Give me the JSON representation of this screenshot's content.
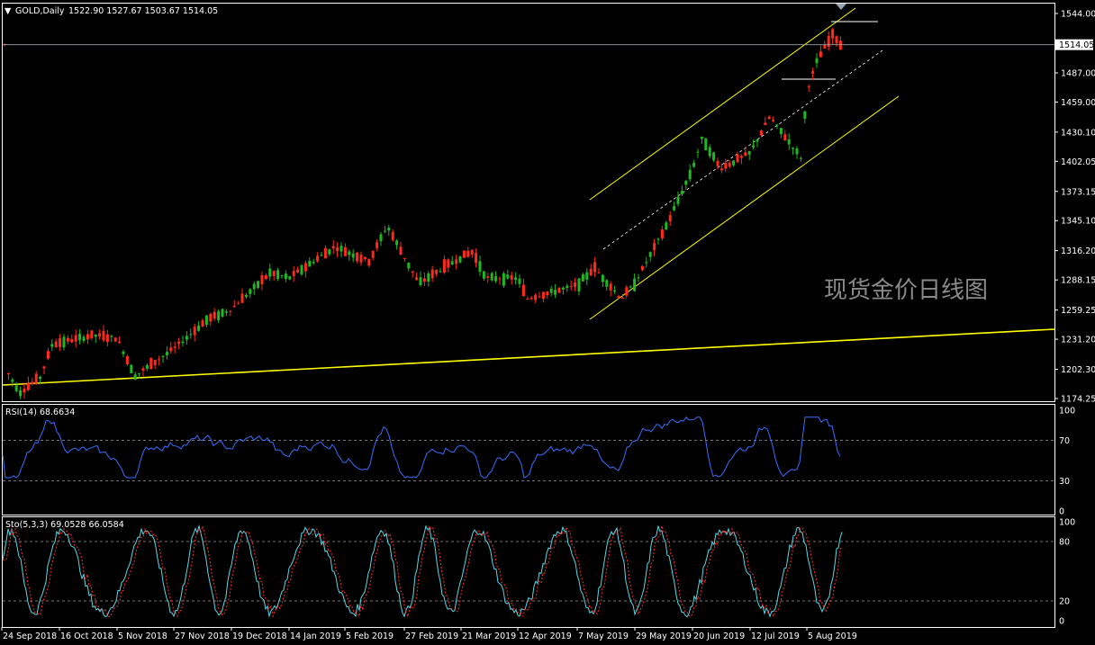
{
  "header": {
    "symbol": "GOLD,Daily",
    "ohlc": "1522.90 1527.67 1503.67 1514.05"
  },
  "watermark": "现货金价日线图",
  "rsi": {
    "label": "RSI(14) 68.6634",
    "ticks": [
      "100",
      "70",
      "30",
      "0"
    ]
  },
  "sto": {
    "label": "Sto(5,3,3) 69.0528 66.0584",
    "ticks": [
      "100",
      "80",
      "20",
      "0"
    ]
  },
  "price_axis": {
    "ticks": [
      "1544.00",
      "1487.00",
      "1459.00",
      "1430.10",
      "1402.05",
      "1373.15",
      "1345.10",
      "1316.20",
      "1288.15",
      "1259.25",
      "1231.20",
      "1202.30",
      "1174.25"
    ],
    "current": "1514.05"
  },
  "date_axis": [
    "24 Sep 2018",
    "16 Oct 2018",
    "5 Nov 2018",
    "27 Nov 2018",
    "19 Dec 2018",
    "14 Jan 2019",
    "5 Feb 2019",
    "27 Feb 2019",
    "21 Mar 2019",
    "12 Apr 2019",
    "7 May 2019",
    "29 May 2019",
    "20 Jun 2019",
    "12 Jul 2019",
    "5 Aug 2019"
  ],
  "colors": {
    "up": "#ff2a1a",
    "down": "#1fb81f",
    "trend": "#ffff00",
    "rsi": "#3a6fff",
    "sto_main": "#5ad8e6",
    "sto_signal": "#ff3030",
    "frame": "#ffffff",
    "grid": "#9a9a9a"
  },
  "chart_data": [
    {
      "type": "candlestick",
      "title": "GOLD,Daily",
      "ylim": [
        1174.25,
        1544.0
      ],
      "key_price_points": [
        {
          "date": "24 Sep 2018",
          "close": 1200
        },
        {
          "date": "16 Oct 2018",
          "close": 1228
        },
        {
          "date": "5 Nov 2018",
          "close": 1232
        },
        {
          "date": "27 Nov 2018",
          "close": 1222
        },
        {
          "date": "19 Dec 2018",
          "close": 1260
        },
        {
          "date": "14 Jan 2019",
          "close": 1290
        },
        {
          "date": "5 Feb 2019",
          "close": 1316
        },
        {
          "date": "27 Feb 2019",
          "close": 1310
        },
        {
          "date": "21 Mar 2019",
          "close": 1310
        },
        {
          "date": "12 Apr 2019",
          "close": 1290
        },
        {
          "date": "7 May 2019",
          "close": 1283
        },
        {
          "date": "29 May 2019",
          "close": 1285
        },
        {
          "date": "20 Jun 2019",
          "close": 1395
        },
        {
          "date": "12 Jul 2019",
          "close": 1410
        },
        {
          "date": "5 Aug 2019",
          "close": 1470
        },
        {
          "date": "Aug 2019",
          "close": 1514.05
        }
      ]
    },
    {
      "type": "line",
      "title": "RSI(14) 68.6634",
      "ylim": [
        0,
        100
      ],
      "levels": [
        70,
        30
      ],
      "value": 68.6634
    },
    {
      "type": "line",
      "title": "Sto(5,3,3) 69.0528 66.0584",
      "ylim": [
        0,
        100
      ],
      "levels": [
        80,
        20
      ],
      "main": 69.0528,
      "signal": 66.0584
    }
  ]
}
